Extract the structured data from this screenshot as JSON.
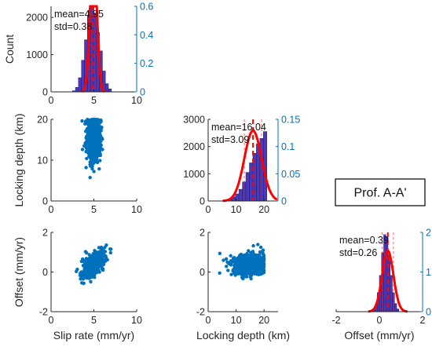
{
  "chart_data": [
    {
      "type": "histogram",
      "panel": "slip-rate",
      "ylabel": "Count",
      "x_ticks": [
        "0",
        "5",
        "10"
      ],
      "xlim": [
        0,
        10
      ],
      "left_ticks": [
        "0",
        "1000",
        "2000"
      ],
      "ylim": [
        0,
        2300
      ],
      "right_ticks": [
        "0",
        "0.2",
        "0.4",
        "0.6"
      ],
      "y2lim": [
        0,
        0.6
      ],
      "bin_start": 2.5,
      "bin_width": 0.35,
      "counts": [
        30,
        120,
        380,
        850,
        1400,
        2050,
        2280,
        2120,
        1600,
        1100,
        560,
        220,
        80
      ],
      "mean_text": "mean=4.95",
      "std_text": "std=0.38",
      "pdf_mean": 4.95,
      "pdf_std": 0.38
    },
    {
      "type": "scatter",
      "panel": "slip-vs-locking",
      "ylabel": "Locking depth (km)",
      "x_ticks": [
        "0",
        "5",
        "10"
      ],
      "xlim": [
        0,
        10
      ],
      "y_ticks": [
        "0",
        "10",
        "20"
      ],
      "ylim": [
        0,
        20
      ],
      "cloud": {
        "x_mean": 4.95,
        "x_std": 0.38,
        "y_mean": 16.04,
        "y_std": 3.09,
        "y_max": 20,
        "n": 900
      }
    },
    {
      "type": "histogram",
      "panel": "locking-depth",
      "x_ticks": [
        "0",
        "10",
        "20"
      ],
      "xlim": [
        0,
        25
      ],
      "left_ticks": [
        "0",
        "1000",
        "2000",
        "3000"
      ],
      "ylim": [
        0,
        3000
      ],
      "right_ticks": [
        "0",
        "0.05",
        "0.1",
        "0.15"
      ],
      "y2lim": [
        0,
        0.15
      ],
      "bin_start": 6,
      "bin_width": 1.25,
      "counts": [
        20,
        60,
        150,
        260,
        430,
        700,
        1050,
        1400,
        1750,
        2100,
        2300,
        2550
      ],
      "mean_text": "mean=16.04",
      "std_text": "std=3.09",
      "pdf_mean": 16.04,
      "pdf_std": 3.09
    },
    {
      "type": "scatter",
      "panel": "slip-vs-offset",
      "xlabel": "Slip rate (mm/yr)",
      "ylabel": "Offset (mm/yr)",
      "x_ticks": [
        "0",
        "5",
        "10"
      ],
      "xlim": [
        0,
        10
      ],
      "y_ticks": [
        "-2",
        "0",
        "2"
      ],
      "ylim": [
        -2,
        2
      ],
      "cloud": {
        "x_mean": 4.95,
        "x_std": 0.6,
        "y_mean": 0.39,
        "y_std": 0.26,
        "slope": 0.3,
        "n": 700
      }
    },
    {
      "type": "scatter",
      "panel": "locking-vs-offset",
      "xlabel": "Locking depth (km)",
      "x_ticks": [
        "0",
        "10",
        "20"
      ],
      "xlim": [
        0,
        25
      ],
      "y_ticks": [
        "-2",
        "0",
        "2"
      ],
      "ylim": [
        -2,
        2
      ],
      "cloud": {
        "x_mean": 15,
        "x_std": 3.2,
        "y_mean": 0.39,
        "y_std": 0.26,
        "x_max": 20,
        "n": 700
      }
    },
    {
      "type": "histogram",
      "panel": "offset",
      "xlabel": "Offset (mm/yr)",
      "x_ticks": [
        "-2",
        "0",
        "2"
      ],
      "xlim": [
        -2,
        2
      ],
      "right_ticks": [
        "0",
        "1",
        "2"
      ],
      "y2lim": [
        0,
        2
      ],
      "bin_start": -0.3,
      "bin_width": 0.1,
      "counts": [
        40,
        160,
        420,
        800,
        1300,
        1700,
        1650,
        1250,
        800,
        420,
        180,
        60
      ],
      "count_ymax": 1750,
      "mean_text": "mean=0.39",
      "std_text": "std=0.26",
      "pdf_mean": 0.39,
      "pdf_std": 0.26
    }
  ],
  "profile_label": "Prof. A-A'"
}
